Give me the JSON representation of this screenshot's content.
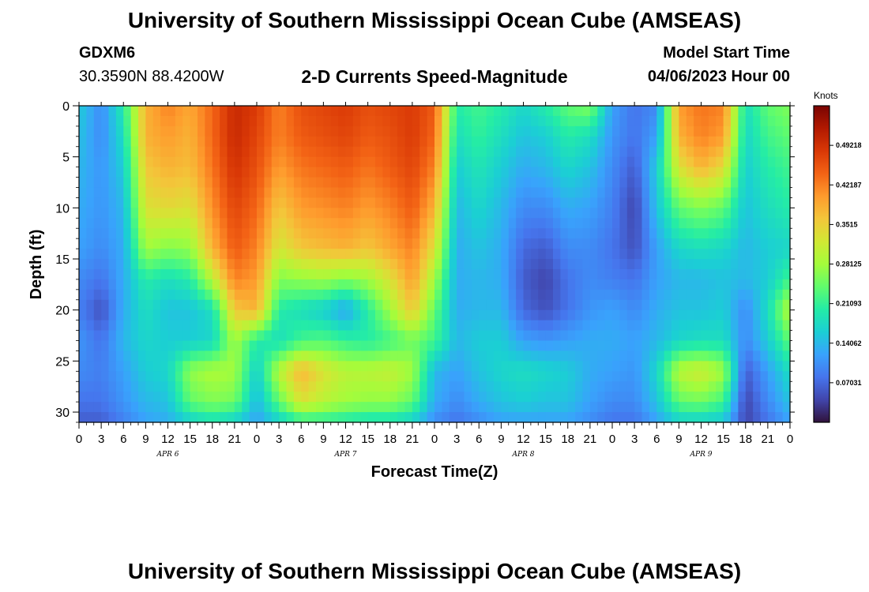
{
  "header": {
    "title": "University of Southern Mississippi Ocean Cube (AMSEAS)",
    "station": "GDXM6",
    "coordinates": "30.3590N  88.4200W",
    "subtitle": "2-D Currents Speed-Magnitude",
    "model_start_label": "Model Start Time",
    "model_start_value": "04/06/2023 Hour 00"
  },
  "footer": {
    "title": "University of Southern Mississippi Ocean Cube (AMSEAS)"
  },
  "colors": {
    "axis": "#000000",
    "colormap": [
      "#30123b",
      "#4145ab",
      "#4675ed",
      "#39a2fc",
      "#1bcfd4",
      "#24eca6",
      "#61fc6c",
      "#a4fc3b",
      "#d1e834",
      "#f3c63a",
      "#fe9b2d",
      "#f36315",
      "#d93806",
      "#b11901",
      "#7a0402"
    ]
  },
  "chart_data": {
    "type": "heatmap",
    "xlabel": "Forecast Time(Z)",
    "ylabel": "Depth (ft)",
    "colorbar_label": "Knots",
    "x_range_hours": [
      0,
      96
    ],
    "ylim": [
      0,
      31
    ],
    "x_tick_labels": [
      "0",
      "3",
      "6",
      "9",
      "12",
      "15",
      "18",
      "21",
      "0",
      "3",
      "6",
      "9",
      "12",
      "15",
      "18",
      "21",
      "0",
      "3",
      "6",
      "9",
      "12",
      "15",
      "18",
      "21",
      "0",
      "3",
      "6",
      "9",
      "12",
      "15",
      "18",
      "21",
      "0"
    ],
    "date_labels": [
      {
        "label": "APR 6",
        "hour": 12
      },
      {
        "label": "APR 7",
        "hour": 36
      },
      {
        "label": "APR 8",
        "hour": 60
      },
      {
        "label": "APR 9",
        "hour": 84
      }
    ],
    "y_ticks": [
      0,
      5,
      10,
      15,
      20,
      25,
      30
    ],
    "colorbar": {
      "range": [
        0,
        0.5625
      ],
      "ticks": [
        0.07031,
        0.14062,
        0.21093,
        0.28125,
        0.3515,
        0.42187,
        0.49218
      ],
      "tick_labels": [
        "0.07031",
        "0.14062",
        "0.21093",
        "0.28125",
        "0.3515",
        "0.42187",
        "0.49218"
      ]
    },
    "depth_levels_ft": [
      0,
      3,
      6,
      10,
      14,
      17,
      20,
      23,
      26,
      29,
      31
    ],
    "time_hours": [
      0,
      3,
      6,
      9,
      12,
      15,
      18,
      21,
      24,
      27,
      30,
      33,
      36,
      39,
      42,
      45,
      48,
      51,
      54,
      57,
      60,
      63,
      66,
      69,
      72,
      75,
      78,
      81,
      84,
      87,
      90,
      93,
      96
    ],
    "speed_knots": [
      [
        0.16,
        0.1,
        0.2,
        0.38,
        0.42,
        0.39,
        0.44,
        0.5,
        0.48,
        0.42,
        0.46,
        0.47,
        0.48,
        0.46,
        0.47,
        0.48,
        0.45,
        0.2,
        0.22,
        0.2,
        0.17,
        0.2,
        0.24,
        0.26,
        0.12,
        0.08,
        0.1,
        0.4,
        0.43,
        0.42,
        0.18,
        0.24,
        0.26
      ],
      [
        0.15,
        0.1,
        0.18,
        0.38,
        0.4,
        0.38,
        0.44,
        0.5,
        0.47,
        0.42,
        0.45,
        0.46,
        0.47,
        0.45,
        0.46,
        0.48,
        0.44,
        0.18,
        0.21,
        0.18,
        0.15,
        0.16,
        0.2,
        0.18,
        0.11,
        0.08,
        0.12,
        0.38,
        0.42,
        0.4,
        0.17,
        0.22,
        0.24
      ],
      [
        0.14,
        0.11,
        0.16,
        0.36,
        0.38,
        0.37,
        0.43,
        0.49,
        0.46,
        0.4,
        0.43,
        0.44,
        0.45,
        0.43,
        0.45,
        0.47,
        0.42,
        0.16,
        0.19,
        0.16,
        0.13,
        0.14,
        0.17,
        0.15,
        0.1,
        0.06,
        0.16,
        0.33,
        0.38,
        0.34,
        0.16,
        0.2,
        0.22
      ],
      [
        0.13,
        0.11,
        0.14,
        0.33,
        0.34,
        0.33,
        0.41,
        0.47,
        0.44,
        0.36,
        0.4,
        0.41,
        0.42,
        0.4,
        0.42,
        0.45,
        0.38,
        0.14,
        0.17,
        0.14,
        0.1,
        0.1,
        0.13,
        0.12,
        0.09,
        0.04,
        0.15,
        0.24,
        0.26,
        0.24,
        0.15,
        0.18,
        0.2
      ],
      [
        0.12,
        0.1,
        0.13,
        0.28,
        0.26,
        0.27,
        0.38,
        0.45,
        0.42,
        0.32,
        0.36,
        0.37,
        0.38,
        0.36,
        0.39,
        0.42,
        0.33,
        0.13,
        0.15,
        0.13,
        0.07,
        0.06,
        0.1,
        0.1,
        0.08,
        0.05,
        0.12,
        0.17,
        0.18,
        0.17,
        0.14,
        0.16,
        0.17
      ],
      [
        0.1,
        0.08,
        0.13,
        0.2,
        0.18,
        0.2,
        0.3,
        0.42,
        0.4,
        0.26,
        0.27,
        0.28,
        0.26,
        0.28,
        0.33,
        0.4,
        0.28,
        0.13,
        0.14,
        0.13,
        0.06,
        0.04,
        0.08,
        0.1,
        0.09,
        0.08,
        0.12,
        0.14,
        0.14,
        0.15,
        0.14,
        0.16,
        0.22
      ],
      [
        0.09,
        0.05,
        0.13,
        0.18,
        0.15,
        0.15,
        0.18,
        0.36,
        0.38,
        0.2,
        0.18,
        0.16,
        0.12,
        0.2,
        0.28,
        0.36,
        0.24,
        0.13,
        0.14,
        0.14,
        0.07,
        0.05,
        0.08,
        0.11,
        0.12,
        0.1,
        0.13,
        0.15,
        0.15,
        0.16,
        0.1,
        0.18,
        0.3
      ],
      [
        0.11,
        0.08,
        0.14,
        0.17,
        0.16,
        0.16,
        0.17,
        0.28,
        0.2,
        0.18,
        0.22,
        0.23,
        0.21,
        0.2,
        0.22,
        0.25,
        0.22,
        0.14,
        0.16,
        0.16,
        0.12,
        0.11,
        0.12,
        0.13,
        0.13,
        0.12,
        0.14,
        0.17,
        0.18,
        0.18,
        0.1,
        0.16,
        0.24
      ],
      [
        0.1,
        0.09,
        0.12,
        0.16,
        0.17,
        0.27,
        0.29,
        0.28,
        0.16,
        0.3,
        0.38,
        0.33,
        0.3,
        0.3,
        0.31,
        0.28,
        0.14,
        0.12,
        0.15,
        0.17,
        0.18,
        0.17,
        0.16,
        0.13,
        0.12,
        0.11,
        0.17,
        0.3,
        0.32,
        0.28,
        0.06,
        0.12,
        0.18
      ],
      [
        0.08,
        0.08,
        0.11,
        0.14,
        0.15,
        0.24,
        0.26,
        0.25,
        0.14,
        0.24,
        0.33,
        0.3,
        0.28,
        0.27,
        0.27,
        0.24,
        0.13,
        0.1,
        0.13,
        0.15,
        0.16,
        0.15,
        0.15,
        0.12,
        0.1,
        0.1,
        0.15,
        0.24,
        0.25,
        0.22,
        0.04,
        0.1,
        0.15
      ],
      [
        0.06,
        0.06,
        0.09,
        0.12,
        0.13,
        0.16,
        0.18,
        0.16,
        0.12,
        0.16,
        0.2,
        0.2,
        0.19,
        0.18,
        0.18,
        0.16,
        0.1,
        0.08,
        0.1,
        0.12,
        0.12,
        0.12,
        0.12,
        0.1,
        0.08,
        0.08,
        0.12,
        0.16,
        0.16,
        0.15,
        0.04,
        0.08,
        0.12
      ]
    ]
  }
}
